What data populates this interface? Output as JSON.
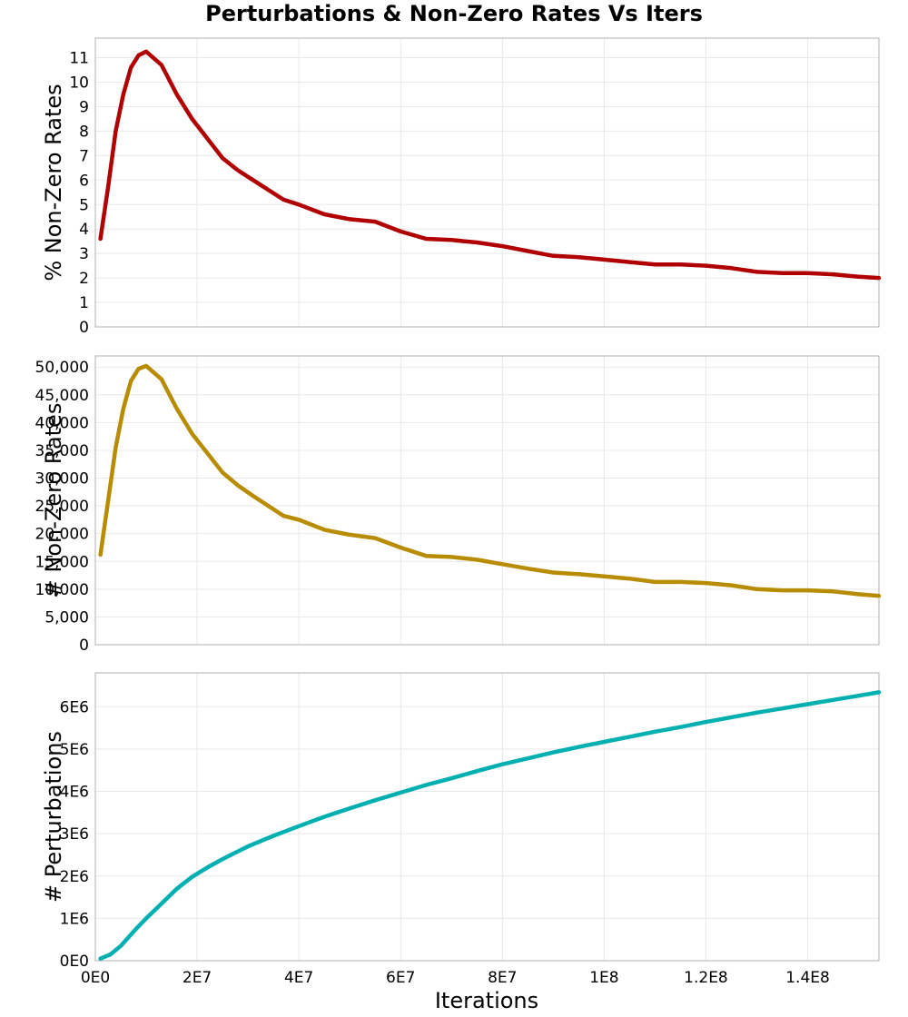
{
  "title": "Perturbations & Non-Zero Rates Vs Iters",
  "chart_data": {
    "type": "line",
    "title": "Perturbations & Non-Zero Rates Vs Iters",
    "xlabel": "Iterations",
    "xlim": [
      0,
      154000000
    ],
    "x_ticks": [
      0,
      20000000,
      40000000,
      60000000,
      80000000,
      100000000,
      120000000,
      140000000
    ],
    "x_tick_labels": [
      "0E0",
      "2E7",
      "4E7",
      "6E7",
      "8E7",
      "1E8",
      "1.2E8",
      "1.4E8"
    ],
    "grid": true,
    "panels": [
      {
        "name": "pct-nonzero",
        "ylabel": "% Non-Zero Rates",
        "ylim": [
          0,
          11.8
        ],
        "y_ticks": [
          0,
          1,
          2,
          3,
          4,
          5,
          6,
          7,
          8,
          9,
          10,
          11
        ],
        "y_tick_labels": [
          "0",
          "1",
          "2",
          "3",
          "4",
          "5",
          "6",
          "7",
          "8",
          "9",
          "10",
          "11"
        ],
        "color": "#b00000",
        "series": {
          "name": "% Non-Zero Rates",
          "x": [
            1000000,
            2500000,
            4000000,
            5500000,
            7000000,
            8500000,
            10000000,
            13000000,
            16000000,
            19000000,
            22000000,
            25000000,
            28000000,
            31000000,
            34000000,
            37000000,
            40000000,
            45000000,
            50000000,
            55000000,
            60000000,
            65000000,
            70000000,
            75000000,
            80000000,
            85000000,
            90000000,
            95000000,
            100000000,
            105000000,
            110000000,
            115000000,
            120000000,
            125000000,
            130000000,
            135000000,
            140000000,
            145000000,
            150000000,
            154000000
          ],
          "values": [
            3.6,
            5.7,
            8.0,
            9.5,
            10.6,
            11.1,
            11.25,
            10.7,
            9.5,
            8.5,
            7.7,
            6.9,
            6.4,
            6.0,
            5.6,
            5.2,
            5.0,
            4.6,
            4.4,
            4.3,
            3.9,
            3.6,
            3.55,
            3.45,
            3.3,
            3.1,
            2.9,
            2.85,
            2.75,
            2.65,
            2.55,
            2.55,
            2.5,
            2.4,
            2.25,
            2.2,
            2.2,
            2.15,
            2.05,
            2.0
          ]
        }
      },
      {
        "name": "count-nonzero",
        "ylabel": "# Non-Zero Rates",
        "ylim": [
          0,
          52000
        ],
        "y_ticks": [
          0,
          5000,
          10000,
          15000,
          20000,
          25000,
          30000,
          35000,
          40000,
          45000,
          50000
        ],
        "y_tick_labels": [
          "0",
          "5,000",
          "10,000",
          "15,000",
          "20,000",
          "25,000",
          "30,000",
          "35,000",
          "40,000",
          "45,000",
          "50,000"
        ],
        "color": "#b88c00",
        "series": {
          "name": "# Non-Zero Rates",
          "x": [
            1000000,
            2500000,
            4000000,
            5500000,
            7000000,
            8500000,
            10000000,
            13000000,
            16000000,
            19000000,
            22000000,
            25000000,
            28000000,
            31000000,
            34000000,
            37000000,
            40000000,
            45000000,
            50000000,
            55000000,
            60000000,
            65000000,
            70000000,
            75000000,
            80000000,
            85000000,
            90000000,
            95000000,
            100000000,
            105000000,
            110000000,
            115000000,
            120000000,
            125000000,
            130000000,
            135000000,
            140000000,
            145000000,
            150000000,
            154000000
          ],
          "values": [
            16200,
            25800,
            35500,
            42500,
            47500,
            49700,
            50200,
            47800,
            42500,
            38000,
            34500,
            31000,
            28700,
            26800,
            25000,
            23200,
            22500,
            20700,
            19800,
            19200,
            17500,
            16000,
            15800,
            15300,
            14500,
            13700,
            13000,
            12700,
            12300,
            11900,
            11300,
            11300,
            11100,
            10700,
            10000,
            9800,
            9800,
            9600,
            9100,
            8800
          ]
        }
      },
      {
        "name": "perturbations",
        "ylabel": "# Perturbations",
        "ylim": [
          0,
          6800000
        ],
        "y_ticks": [
          0,
          1000000,
          2000000,
          3000000,
          4000000,
          5000000,
          6000000
        ],
        "y_tick_labels": [
          "0E0",
          "1E6",
          "2E6",
          "3E6",
          "4E6",
          "5E6",
          "6E6"
        ],
        "color": "#00b0b0",
        "series": {
          "name": "# Perturbations",
          "x": [
            1000000,
            3000000,
            5000000,
            8000000,
            10000000,
            13000000,
            16000000,
            19000000,
            22000000,
            25000000,
            30000000,
            35000000,
            40000000,
            45000000,
            50000000,
            55000000,
            60000000,
            65000000,
            70000000,
            75000000,
            80000000,
            85000000,
            90000000,
            95000000,
            100000000,
            105000000,
            110000000,
            115000000,
            120000000,
            125000000,
            130000000,
            135000000,
            140000000,
            145000000,
            150000000,
            154000000
          ],
          "values": [
            50000,
            150000,
            350000,
            750000,
            1000000,
            1350000,
            1700000,
            1980000,
            2200000,
            2400000,
            2700000,
            2950000,
            3180000,
            3400000,
            3600000,
            3790000,
            3970000,
            4150000,
            4310000,
            4480000,
            4640000,
            4780000,
            4920000,
            5050000,
            5170000,
            5290000,
            5410000,
            5520000,
            5640000,
            5750000,
            5860000,
            5960000,
            6060000,
            6160000,
            6260000,
            6340000
          ]
        }
      }
    ]
  }
}
